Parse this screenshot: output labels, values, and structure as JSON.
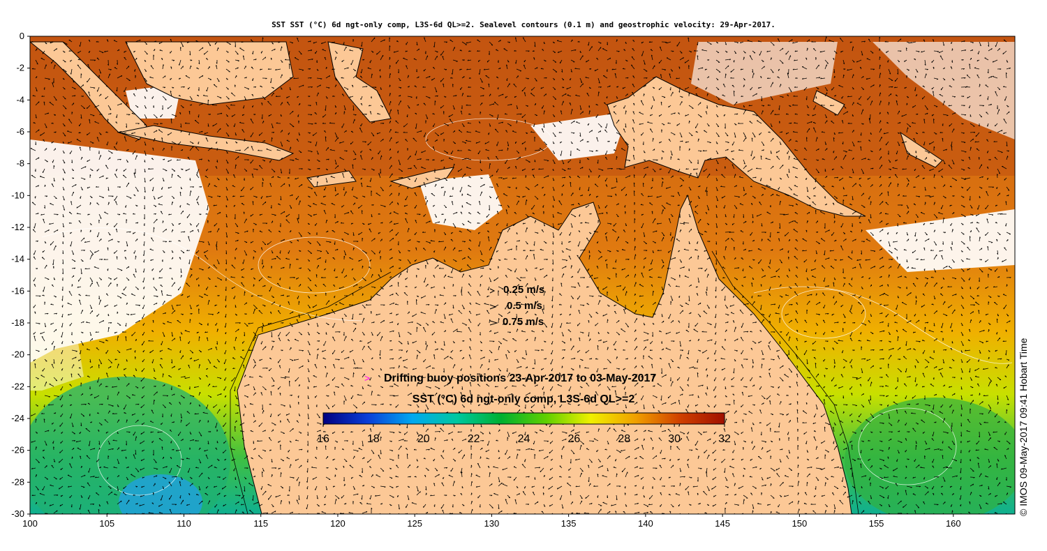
{
  "title": "SST SST (°C) 6d ngt-only comp, L3S-6d QL>=2. Sealevel contours (0.1 m) and geostrophic velocity: 29-Apr-2017.",
  "credit": "© IMOS 09-May-2017 09:41 Hobart Time",
  "axes": {
    "x_ticks": [
      "100",
      "105",
      "110",
      "115",
      "120",
      "125",
      "130",
      "135",
      "140",
      "145",
      "150",
      "155",
      "160"
    ],
    "y_ticks": [
      "0",
      "-2",
      "-4",
      "-6",
      "-8",
      "-10",
      "-12",
      "-14",
      "-16",
      "-18",
      "-20",
      "-22",
      "-24",
      "-26",
      "-28",
      "-30"
    ],
    "lon_range": [
      100,
      164
    ],
    "lat_range": [
      -30,
      0
    ]
  },
  "velocity_legend": [
    {
      "label": "0.25 m/s",
      "speed": 0.25
    },
    {
      "label": "0.5 m/s",
      "speed": 0.5
    },
    {
      "label": "0.75 m/s",
      "speed": 0.75
    }
  ],
  "buoy_legend": {
    "marker": ">",
    "label": "Drifting buoy positions 23-Apr-2017 to 03-May-2017",
    "color": "#ff00ff"
  },
  "colorbar": {
    "title": "SST (°C) 6d ngt-only comp, L3S-6d QL>=2",
    "ticks": [
      "16",
      "18",
      "20",
      "22",
      "24",
      "26",
      "28",
      "30",
      "32"
    ],
    "range": [
      16,
      32
    ],
    "stops": [
      "#000080",
      "#0a3ed8",
      "#00a8f0",
      "#00c8a0",
      "#00b030",
      "#60d000",
      "#f0f000",
      "#f0a000",
      "#d04000",
      "#a01000"
    ]
  },
  "colors": {
    "land": "#fcc896",
    "missing": "#ffffff",
    "contour": "#ffffff",
    "coast": "#000000"
  }
}
